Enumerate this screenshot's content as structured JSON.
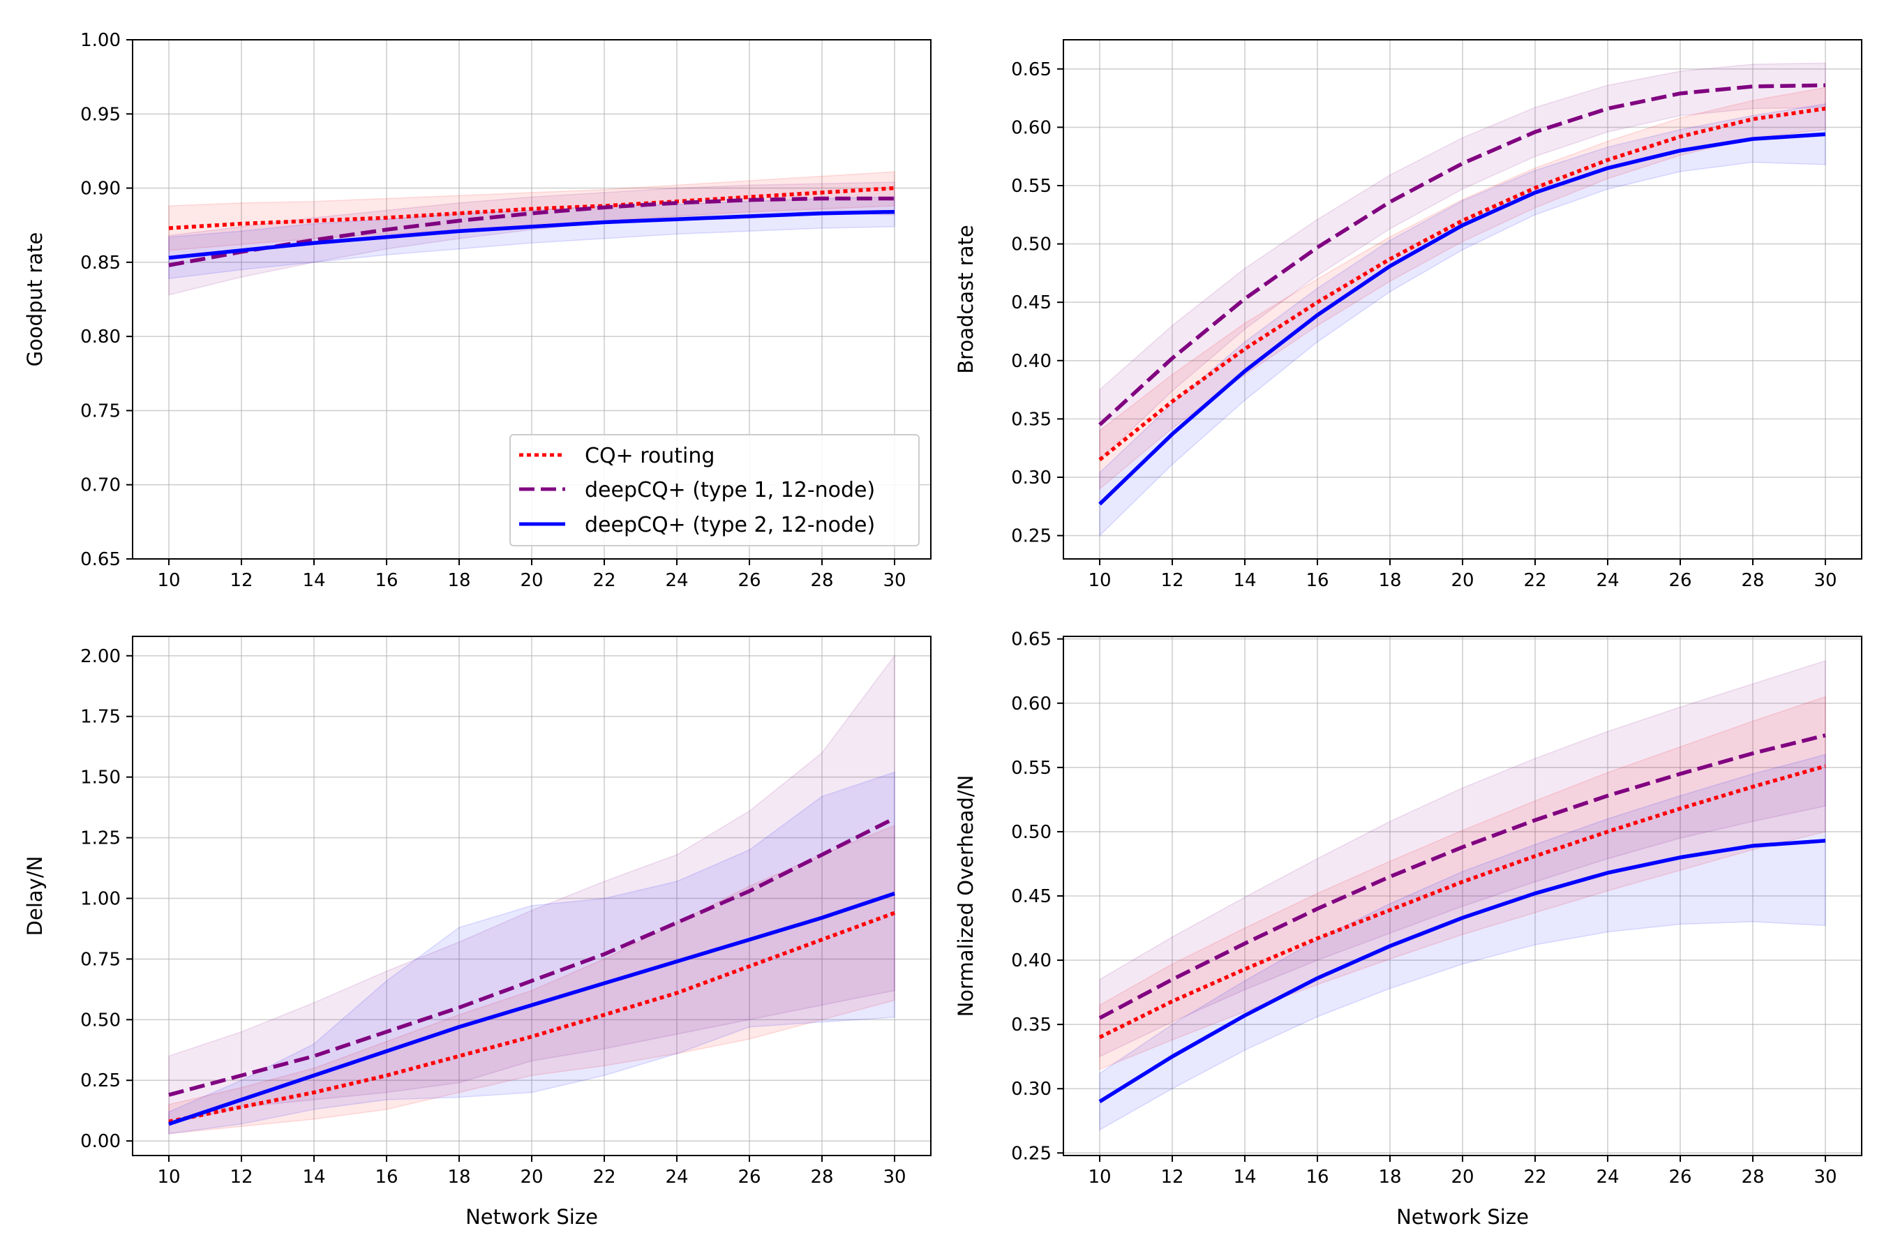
{
  "figure": {
    "legend": {
      "placement": "lower-right of top-left panel",
      "entries": [
        "CQ+ routing",
        "deepCQ+ (type 1, 12-node)",
        "deepCQ+ (type 2, 12-node)"
      ]
    }
  },
  "chart_data": [
    {
      "type": "line",
      "title": "",
      "xlabel": "",
      "ylabel": "Goodput rate",
      "xlim": [
        9,
        31
      ],
      "ylim": [
        0.65,
        1.0
      ],
      "xticks": [
        10,
        12,
        14,
        16,
        18,
        20,
        22,
        24,
        26,
        28,
        30
      ],
      "yticks": [
        0.65,
        0.7,
        0.75,
        0.8,
        0.85,
        0.9,
        0.95,
        1.0
      ],
      "grid": true,
      "legend": true,
      "x": [
        10,
        12,
        14,
        16,
        18,
        20,
        22,
        24,
        26,
        28,
        30
      ],
      "series": [
        {
          "name": "CQ+ routing",
          "color": "#ff0000",
          "style": "dotted",
          "values": [
            0.873,
            0.876,
            0.878,
            0.88,
            0.883,
            0.886,
            0.888,
            0.891,
            0.894,
            0.897,
            0.9
          ],
          "lower": [
            0.858,
            0.862,
            0.866,
            0.869,
            0.872,
            0.875,
            0.878,
            0.881,
            0.884,
            0.886,
            0.888
          ],
          "upper": [
            0.888,
            0.89,
            0.891,
            0.893,
            0.895,
            0.897,
            0.899,
            0.902,
            0.905,
            0.908,
            0.911
          ]
        },
        {
          "name": "deepCQ+ (type 1, 12-node)",
          "color": "#800080",
          "style": "dashed",
          "values": [
            0.848,
            0.857,
            0.865,
            0.872,
            0.878,
            0.883,
            0.887,
            0.89,
            0.892,
            0.893,
            0.893
          ],
          "lower": [
            0.828,
            0.84,
            0.85,
            0.859,
            0.866,
            0.872,
            0.877,
            0.88,
            0.882,
            0.883,
            0.882
          ],
          "upper": [
            0.868,
            0.874,
            0.88,
            0.885,
            0.89,
            0.894,
            0.897,
            0.9,
            0.902,
            0.903,
            0.904
          ]
        },
        {
          "name": "deepCQ+ (type 2, 12-node)",
          "color": "#0000ff",
          "style": "solid",
          "values": [
            0.853,
            0.858,
            0.863,
            0.867,
            0.871,
            0.874,
            0.877,
            0.879,
            0.881,
            0.883,
            0.884
          ],
          "lower": [
            0.839,
            0.845,
            0.85,
            0.855,
            0.859,
            0.863,
            0.866,
            0.869,
            0.871,
            0.873,
            0.874
          ],
          "upper": [
            0.867,
            0.871,
            0.876,
            0.879,
            0.883,
            0.885,
            0.888,
            0.889,
            0.891,
            0.893,
            0.894
          ]
        }
      ]
    },
    {
      "type": "line",
      "title": "",
      "xlabel": "",
      "ylabel": "Broadcast rate",
      "xlim": [
        9,
        31
      ],
      "ylim": [
        0.23,
        0.675
      ],
      "xticks": [
        10,
        12,
        14,
        16,
        18,
        20,
        22,
        24,
        26,
        28,
        30
      ],
      "yticks": [
        0.25,
        0.3,
        0.35,
        0.4,
        0.45,
        0.5,
        0.55,
        0.6,
        0.65
      ],
      "grid": true,
      "legend": false,
      "x": [
        10,
        12,
        14,
        16,
        18,
        20,
        22,
        24,
        26,
        28,
        30
      ],
      "series": [
        {
          "name": "CQ+ routing",
          "color": "#ff0000",
          "style": "dotted",
          "values": [
            0.315,
            0.365,
            0.41,
            0.45,
            0.487,
            0.52,
            0.548,
            0.572,
            0.592,
            0.607,
            0.616
          ],
          "lower": [
            0.29,
            0.342,
            0.388,
            0.43,
            0.468,
            0.502,
            0.531,
            0.556,
            0.576,
            0.591,
            0.598
          ],
          "upper": [
            0.34,
            0.388,
            0.432,
            0.47,
            0.506,
            0.538,
            0.565,
            0.588,
            0.608,
            0.623,
            0.634
          ]
        },
        {
          "name": "deepCQ+ (type 1, 12-node)",
          "color": "#800080",
          "style": "dashed",
          "values": [
            0.345,
            0.402,
            0.453,
            0.497,
            0.536,
            0.569,
            0.596,
            0.616,
            0.629,
            0.635,
            0.636
          ],
          "lower": [
            0.315,
            0.374,
            0.427,
            0.473,
            0.513,
            0.547,
            0.575,
            0.596,
            0.61,
            0.616,
            0.617
          ],
          "upper": [
            0.375,
            0.43,
            0.479,
            0.521,
            0.559,
            0.591,
            0.617,
            0.636,
            0.648,
            0.654,
            0.655
          ]
        },
        {
          "name": "deepCQ+ (type 2, 12-node)",
          "color": "#0000ff",
          "style": "solid",
          "values": [
            0.277,
            0.337,
            0.391,
            0.439,
            0.481,
            0.516,
            0.544,
            0.565,
            0.58,
            0.59,
            0.594
          ],
          "lower": [
            0.25,
            0.311,
            0.366,
            0.416,
            0.459,
            0.495,
            0.525,
            0.547,
            0.562,
            0.57,
            0.568
          ],
          "upper": [
            0.304,
            0.363,
            0.416,
            0.462,
            0.503,
            0.537,
            0.563,
            0.583,
            0.598,
            0.61,
            0.62
          ]
        }
      ]
    },
    {
      "type": "line",
      "title": "",
      "xlabel": "Network Size",
      "ylabel": "Delay/N",
      "xlim": [
        9,
        31
      ],
      "ylim": [
        -0.06,
        2.08
      ],
      "xticks": [
        10,
        12,
        14,
        16,
        18,
        20,
        22,
        24,
        26,
        28,
        30
      ],
      "yticks": [
        0.0,
        0.25,
        0.5,
        0.75,
        1.0,
        1.25,
        1.5,
        1.75,
        2.0
      ],
      "grid": true,
      "legend": false,
      "x": [
        10,
        12,
        14,
        16,
        18,
        20,
        22,
        24,
        26,
        28,
        30
      ],
      "series": [
        {
          "name": "CQ+ routing",
          "color": "#ff0000",
          "style": "dotted",
          "values": [
            0.08,
            0.14,
            0.2,
            0.27,
            0.35,
            0.43,
            0.52,
            0.61,
            0.72,
            0.83,
            0.94
          ],
          "lower": [
            0.03,
            0.06,
            0.09,
            0.13,
            0.2,
            0.27,
            0.31,
            0.36,
            0.42,
            0.5,
            0.58
          ],
          "upper": [
            0.15,
            0.22,
            0.3,
            0.41,
            0.52,
            0.62,
            0.75,
            0.9,
            1.05,
            1.18,
            1.3
          ]
        },
        {
          "name": "deepCQ+ (type 1, 12-node)",
          "color": "#800080",
          "style": "dashed",
          "values": [
            0.19,
            0.27,
            0.35,
            0.45,
            0.55,
            0.66,
            0.77,
            0.9,
            1.03,
            1.18,
            1.33
          ],
          "lower": [
            0.07,
            0.14,
            0.17,
            0.2,
            0.24,
            0.33,
            0.38,
            0.44,
            0.5,
            0.56,
            0.62
          ],
          "upper": [
            0.35,
            0.45,
            0.57,
            0.7,
            0.82,
            0.95,
            1.07,
            1.18,
            1.36,
            1.6,
            2.0
          ]
        },
        {
          "name": "deepCQ+ (type 2, 12-node)",
          "color": "#0000ff",
          "style": "solid",
          "values": [
            0.07,
            0.17,
            0.27,
            0.37,
            0.47,
            0.56,
            0.65,
            0.74,
            0.83,
            0.92,
            1.02
          ],
          "lower": [
            0.03,
            0.07,
            0.13,
            0.17,
            0.18,
            0.2,
            0.27,
            0.36,
            0.47,
            0.49,
            0.51
          ],
          "upper": [
            0.12,
            0.25,
            0.4,
            0.66,
            0.88,
            0.97,
            1.0,
            1.07,
            1.2,
            1.42,
            1.52
          ]
        }
      ]
    },
    {
      "type": "line",
      "title": "",
      "xlabel": "Network Size",
      "ylabel": "Normalized Overhead/N",
      "xlim": [
        9,
        31
      ],
      "ylim": [
        0.248,
        0.652
      ],
      "xticks": [
        10,
        12,
        14,
        16,
        18,
        20,
        22,
        24,
        26,
        28,
        30
      ],
      "yticks": [
        0.25,
        0.3,
        0.35,
        0.4,
        0.45,
        0.5,
        0.55,
        0.6,
        0.65
      ],
      "grid": true,
      "legend": false,
      "x": [
        10,
        12,
        14,
        16,
        18,
        20,
        22,
        24,
        26,
        28,
        30
      ],
      "series": [
        {
          "name": "CQ+ routing",
          "color": "#ff0000",
          "style": "dotted",
          "values": [
            0.34,
            0.368,
            0.393,
            0.417,
            0.439,
            0.461,
            0.481,
            0.5,
            0.518,
            0.535,
            0.551
          ],
          "lower": [
            0.315,
            0.338,
            0.36,
            0.381,
            0.401,
            0.42,
            0.437,
            0.454,
            0.47,
            0.486,
            0.5
          ],
          "upper": [
            0.365,
            0.397,
            0.425,
            0.452,
            0.477,
            0.501,
            0.524,
            0.546,
            0.566,
            0.586,
            0.605
          ]
        },
        {
          "name": "deepCQ+ (type 1, 12-node)",
          "color": "#800080",
          "style": "dashed",
          "values": [
            0.355,
            0.385,
            0.413,
            0.44,
            0.465,
            0.488,
            0.509,
            0.528,
            0.545,
            0.561,
            0.575
          ],
          "lower": [
            0.325,
            0.352,
            0.377,
            0.4,
            0.421,
            0.442,
            0.461,
            0.479,
            0.495,
            0.508,
            0.52
          ],
          "upper": [
            0.385,
            0.418,
            0.449,
            0.479,
            0.508,
            0.534,
            0.557,
            0.578,
            0.597,
            0.615,
            0.633
          ]
        },
        {
          "name": "deepCQ+ (type 2, 12-node)",
          "color": "#0000ff",
          "style": "solid",
          "values": [
            0.29,
            0.325,
            0.357,
            0.386,
            0.411,
            0.433,
            0.452,
            0.468,
            0.48,
            0.489,
            0.493
          ],
          "lower": [
            0.268,
            0.3,
            0.33,
            0.356,
            0.378,
            0.397,
            0.412,
            0.422,
            0.428,
            0.43,
            0.427
          ],
          "upper": [
            0.312,
            0.35,
            0.384,
            0.416,
            0.444,
            0.469,
            0.49,
            0.51,
            0.528,
            0.545,
            0.56
          ]
        }
      ]
    }
  ]
}
